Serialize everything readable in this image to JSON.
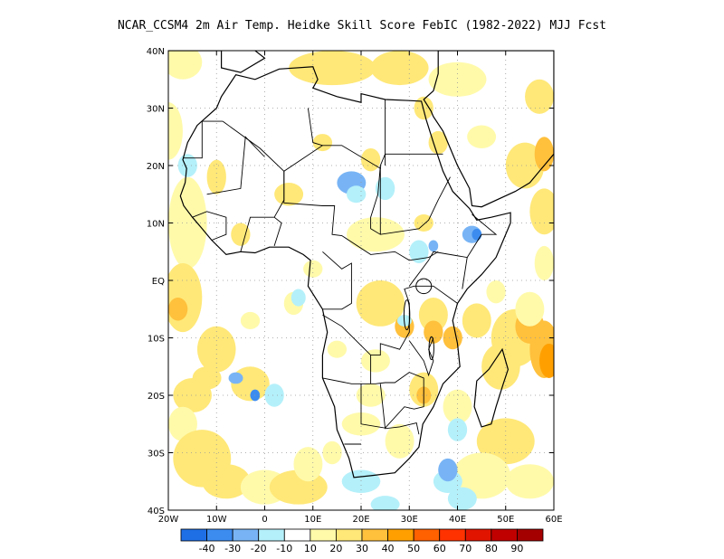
{
  "title": "NCAR_CCSM4  2m Air Temp. Heidke Skill Score FebIC (1982-2022) MJJ Fcst",
  "map": {
    "lon_range": [
      -20,
      60
    ],
    "lat_range": [
      -40,
      40
    ],
    "lat_ticks": [
      {
        "value": 40,
        "label": "40N"
      },
      {
        "value": 30,
        "label": "30N"
      },
      {
        "value": 20,
        "label": "20N"
      },
      {
        "value": 10,
        "label": "10N"
      },
      {
        "value": 0,
        "label": "EQ"
      },
      {
        "value": -10,
        "label": "10S"
      },
      {
        "value": -20,
        "label": "20S"
      },
      {
        "value": -30,
        "label": "30S"
      },
      {
        "value": -40,
        "label": "40S"
      }
    ],
    "lon_ticks": [
      {
        "value": -20,
        "label": "20W"
      },
      {
        "value": -10,
        "label": "10W"
      },
      {
        "value": 0,
        "label": "0"
      },
      {
        "value": 10,
        "label": "10E"
      },
      {
        "value": 20,
        "label": "20E"
      },
      {
        "value": 30,
        "label": "30E"
      },
      {
        "value": 40,
        "label": "40E"
      },
      {
        "value": 50,
        "label": "50E"
      },
      {
        "value": 60,
        "label": "60E"
      }
    ],
    "grid": true,
    "colors": {
      "neg40": "#1e6ee6",
      "neg30": "#3c8cf0",
      "neg20": "#78b4f5",
      "neg10": "#b4f0fa",
      "pos10": "#fffaaa",
      "pos20": "#ffe878",
      "pos30": "#ffc03c",
      "pos40": "#ffa000",
      "pos50": "#ff6000",
      "pos60": "#ff3200",
      "pos70": "#e11400",
      "pos80": "#c00000",
      "pos90": "#a50000"
    }
  },
  "colorbar": {
    "colors": [
      "#1e6ee6",
      "#3c8cf0",
      "#78b4f5",
      "#b4f0fa",
      "#ffffff",
      "#fffaaa",
      "#ffe878",
      "#ffc03c",
      "#ffa000",
      "#ff6000",
      "#ff3200",
      "#e11400",
      "#c00000",
      "#a50000"
    ],
    "tick_labels": [
      "-40",
      "-30",
      "-20",
      "-10",
      "10",
      "20",
      "30",
      "40",
      "50",
      "60",
      "70",
      "80",
      "90"
    ]
  }
}
